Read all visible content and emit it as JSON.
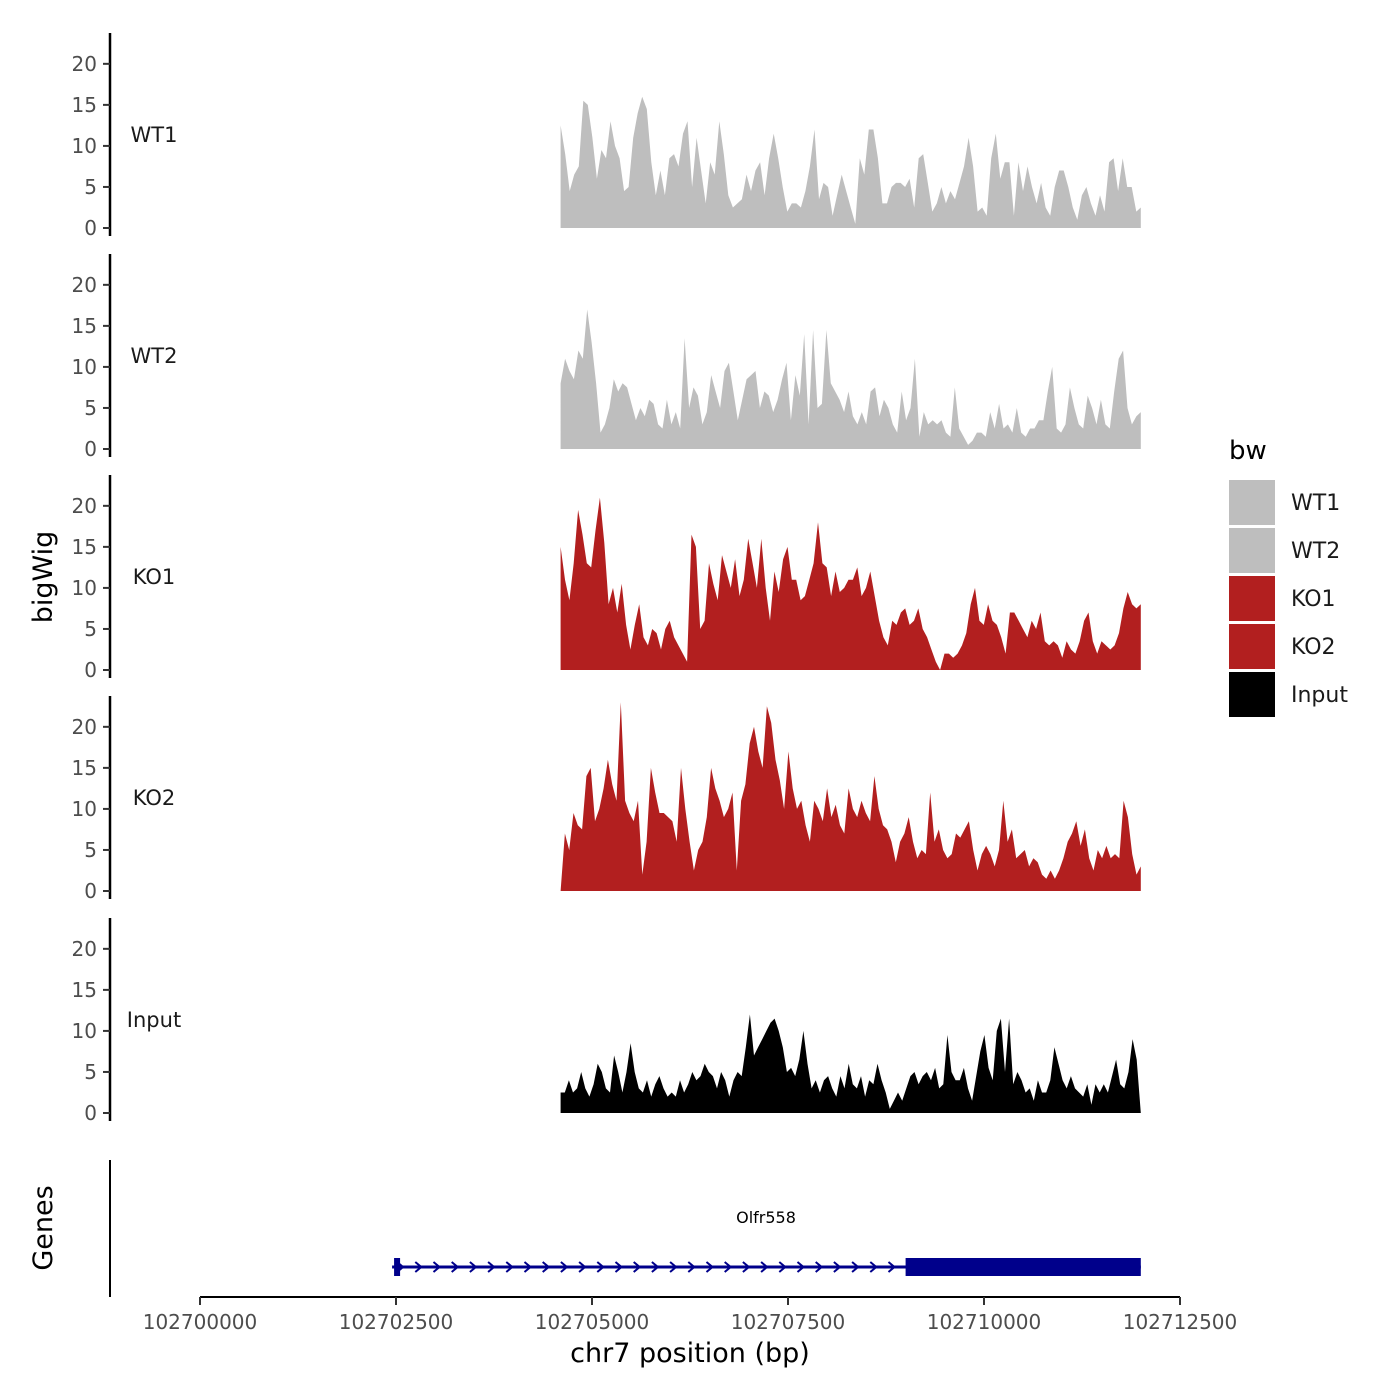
{
  "chart_data": {
    "type": "area",
    "title": "",
    "xlabel": "chr7 position (bp)",
    "ylabel": "bigWig",
    "xlim": [
      102700000,
      102712500
    ],
    "ylim": [
      0,
      24
    ],
    "x_ticks": [
      102700000,
      102702500,
      102705000,
      102707500,
      102710000,
      102712500
    ],
    "y_ticks": [
      0,
      5,
      10,
      15,
      20
    ],
    "legend": {
      "title": "bw",
      "position": "right",
      "entries": [
        {
          "label": "WT1",
          "color": "#bebebe"
        },
        {
          "label": "WT2",
          "color": "#bebebe"
        },
        {
          "label": "KO1",
          "color": "#b21f1f"
        },
        {
          "label": "KO2",
          "color": "#b21f1f"
        },
        {
          "label": "Input",
          "color": "#000000"
        }
      ]
    },
    "series": [
      {
        "name": "WT1",
        "color": "#bebebe",
        "x_start": 102704600,
        "x_end": 102712000,
        "values": [
          12.5,
          9,
          4.5,
          6.5,
          7.5,
          15.5,
          15,
          11,
          6,
          9.5,
          8.5,
          13,
          10,
          8.5,
          4.5,
          5,
          11,
          14,
          16,
          14.5,
          8,
          4,
          7,
          4,
          8.5,
          9,
          7.5,
          11.5,
          13,
          5,
          11,
          7,
          3,
          8,
          6.5,
          13,
          9,
          4,
          2.5,
          3,
          3.5,
          6.5,
          4.5,
          7,
          8,
          4,
          8.5,
          11.5,
          8.5,
          5,
          2,
          3,
          3,
          2.5,
          4.5,
          7.5,
          12,
          3.5,
          5.5,
          5,
          1.5,
          4,
          6.5,
          4.5,
          2.5,
          0.5,
          8.5,
          6.5,
          12,
          12,
          8.5,
          3,
          3,
          5,
          5.5,
          5.5,
          5,
          6,
          2.5,
          8.5,
          9,
          5.5,
          2,
          3,
          5,
          3,
          4.5,
          3.5,
          5.5,
          7.5,
          11,
          7.5,
          2,
          2.5,
          1.5,
          8.5,
          11.5,
          6,
          8,
          8,
          1.5,
          8,
          4.5,
          7.5,
          5,
          3,
          5.5,
          2.5,
          1.5,
          5,
          7,
          7,
          5,
          2.5,
          1,
          4,
          5,
          3,
          1.5,
          4,
          2,
          8,
          8.5,
          4.5,
          8.5,
          5,
          5,
          2,
          2.5
        ]
      },
      {
        "name": "WT2",
        "color": "#bebebe",
        "x_start": 102704600,
        "x_end": 102712000,
        "values": [
          8,
          11,
          9.5,
          8.5,
          12,
          11,
          17,
          13,
          8,
          2,
          3,
          5,
          8.5,
          7,
          8,
          7.5,
          5.5,
          3.5,
          5,
          4,
          6,
          5.5,
          3,
          2.5,
          6,
          3,
          4.5,
          2.5,
          13.5,
          5,
          7.5,
          6.5,
          3,
          4.5,
          9,
          7,
          5,
          9.5,
          10.5,
          7,
          3.5,
          6,
          8.5,
          9,
          9.5,
          5,
          7,
          6.5,
          4.5,
          6,
          8.5,
          10.5,
          3.5,
          9,
          6.5,
          14,
          3,
          14.5,
          5,
          5.5,
          14.5,
          8,
          7,
          6,
          4.5,
          7,
          4,
          3,
          4.5,
          3,
          7,
          7.5,
          4,
          6,
          5,
          3,
          2,
          7,
          3.5,
          5,
          11,
          1.5,
          4.5,
          3,
          3.5,
          3,
          3.5,
          2,
          1.5,
          7.5,
          2.5,
          1.5,
          0.5,
          1,
          2,
          2,
          1.5,
          4.5,
          2.5,
          5.5,
          2.5,
          3,
          2,
          5,
          2,
          1.5,
          2.5,
          2.5,
          3.5,
          3.5,
          7,
          10,
          2.5,
          2,
          3,
          7.5,
          5,
          3,
          2.5,
          6.5,
          5,
          3,
          6,
          3,
          2.5,
          7,
          11,
          12,
          5,
          3,
          4,
          4.5
        ]
      },
      {
        "name": "KO1",
        "color": "#b21f1f",
        "x_start": 102704600,
        "x_end": 102712000,
        "values": [
          15,
          11,
          8.5,
          13,
          19.5,
          16.5,
          13,
          12.5,
          17,
          21,
          15.5,
          8,
          10,
          7,
          10.5,
          5.5,
          2.5,
          5.5,
          8,
          4,
          3,
          5,
          4.5,
          2.5,
          5,
          6,
          4,
          3,
          2,
          1,
          16.5,
          15,
          5,
          6,
          13,
          10.5,
          8.5,
          14,
          12,
          10,
          13.5,
          9,
          11,
          16,
          13,
          10,
          16,
          10,
          6,
          12,
          9.5,
          13.5,
          15,
          11,
          11,
          8.5,
          9,
          11,
          13,
          18,
          13,
          12.5,
          9,
          12,
          9.5,
          10,
          11,
          11,
          12.5,
          9,
          10,
          12,
          9,
          6,
          4,
          3,
          6,
          5.5,
          7,
          7.5,
          5.5,
          6,
          7.5,
          5,
          4,
          2.5,
          1,
          0,
          2,
          2,
          1.5,
          2,
          3,
          4.5,
          8,
          10,
          6,
          5.5,
          8,
          6,
          5.5,
          4,
          2,
          7,
          7,
          6,
          5,
          4,
          6,
          5,
          7,
          3.5,
          3,
          3.5,
          3,
          1.5,
          3.5,
          2.5,
          2,
          3.5,
          6,
          7,
          3.5,
          2,
          3.5,
          3,
          2.5,
          3,
          4.5,
          7.5,
          9.5,
          8,
          7.5,
          8
        ]
      },
      {
        "name": "KO2",
        "color": "#b21f1f",
        "x_start": 102704600,
        "x_end": 102712000,
        "values": [
          0,
          7,
          5,
          9.5,
          8,
          7.5,
          14,
          15,
          8.5,
          10,
          12.5,
          16,
          13,
          11,
          23,
          11,
          9.5,
          8.5,
          11,
          2,
          6,
          15,
          12,
          9.5,
          9.5,
          9,
          8.5,
          6,
          15,
          10,
          6,
          2.5,
          5,
          6,
          9,
          15,
          12.5,
          11,
          9,
          10,
          12,
          2.5,
          11,
          13,
          18,
          20,
          17,
          15,
          22.5,
          20.5,
          16,
          13.5,
          10,
          17,
          12.5,
          10,
          11,
          8,
          6,
          11,
          10,
          8.5,
          12.5,
          9,
          10.5,
          8,
          7,
          12.5,
          10,
          9,
          11,
          9.5,
          8.5,
          14,
          10,
          8,
          7.5,
          6,
          3.5,
          6,
          7,
          9,
          6,
          4,
          5,
          4.5,
          12,
          6,
          7.5,
          5,
          4,
          4.5,
          7,
          6.5,
          7.5,
          8.5,
          5,
          2.5,
          4.5,
          5.5,
          4.5,
          3,
          5,
          11,
          6,
          7.5,
          4,
          4.5,
          5,
          3,
          4,
          3.5,
          2,
          1.5,
          2.5,
          1.5,
          2.5,
          4,
          6,
          7,
          8.5,
          5.5,
          7.5,
          4,
          2.5,
          5,
          4,
          5.5,
          4,
          4.5,
          4,
          11,
          9,
          4.5,
          2,
          3
        ]
      },
      {
        "name": "Input",
        "color": "#000000",
        "x_start": 102704600,
        "x_end": 102712000,
        "values": [
          2.5,
          2.5,
          4,
          2.5,
          3,
          5,
          3,
          2,
          3.5,
          6,
          5,
          3,
          2.5,
          7,
          5,
          2.5,
          5,
          8.5,
          5,
          3,
          2.5,
          4,
          2,
          3.5,
          4.5,
          3,
          2,
          2.5,
          2,
          4,
          2.5,
          3.5,
          5,
          4,
          4.5,
          6,
          5,
          4.5,
          3,
          5,
          4,
          2,
          4,
          5,
          4.5,
          8,
          12,
          7,
          8,
          9,
          10,
          11,
          11.5,
          10,
          8,
          5,
          5.5,
          4.5,
          6.5,
          10,
          6,
          3,
          4,
          2.5,
          4,
          4.5,
          3,
          2,
          4.5,
          3,
          6,
          3.5,
          3,
          4.5,
          2,
          4,
          3.5,
          6,
          4,
          2.5,
          0.5,
          1.5,
          2.5,
          1.5,
          3,
          4.5,
          5,
          3.5,
          4.5,
          5,
          4,
          5.5,
          3,
          3.5,
          9.5,
          5,
          4,
          4,
          5.5,
          3,
          1.5,
          4.5,
          7.5,
          9.5,
          5.5,
          4,
          10,
          11.5,
          5,
          11.5,
          3.5,
          5,
          4,
          2.5,
          3,
          1.5,
          4,
          2.5,
          2.5,
          4,
          8,
          6,
          4,
          3,
          4.5,
          3,
          2.5,
          2,
          3.5,
          1,
          3.5,
          2.5,
          3.5,
          2.5,
          4.5,
          6.5,
          3.5,
          3,
          5,
          9,
          6.5,
          0
        ]
      }
    ],
    "genes": {
      "track_label": "Genes",
      "name": "Olfr558",
      "start": 102702450,
      "end": 102712000,
      "thick_start": 102709000,
      "thick_end": 102712000,
      "strand": "+",
      "color": "#00008b"
    }
  }
}
